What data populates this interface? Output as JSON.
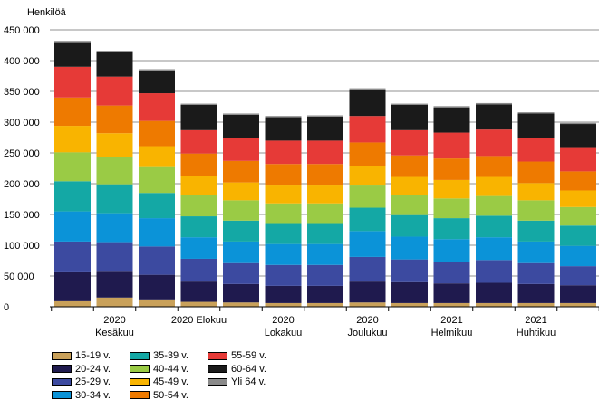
{
  "chart_data": {
    "type": "bar",
    "stacked": true,
    "ylabel": "Henkilöä",
    "ylim": [
      0,
      450000
    ],
    "yticks": [
      "0",
      "50 000",
      "100 000",
      "150 000",
      "200 000",
      "250 000",
      "300 000",
      "350 000",
      "400 000",
      "450 000"
    ],
    "x_tick_labels": [
      {
        "line1": "2020",
        "line2": "Kesäkuu",
        "at": 1
      },
      {
        "line1": "2020 Elokuu",
        "line2": "",
        "at": 3
      },
      {
        "line1": "2020",
        "line2": "Lokakuu",
        "at": 5
      },
      {
        "line1": "2020",
        "line2": "Joulukuu",
        "at": 7
      },
      {
        "line1": "2021",
        "line2": "Helmikuu",
        "at": 9
      },
      {
        "line1": "2021",
        "line2": "Huhtikuu",
        "at": 11
      }
    ],
    "grid": "horizontal",
    "categories": [
      "2020-05",
      "2020-06",
      "2020-07",
      "2020-08",
      "2020-09",
      "2020-10",
      "2020-11",
      "2020-12",
      "2021-01",
      "2021-02",
      "2021-03",
      "2021-04",
      "2021-05"
    ],
    "series": [
      {
        "name": "15-19 v.",
        "color": "#c9a15a",
        "values": [
          9000,
          15000,
          12000,
          8000,
          7000,
          6000,
          6000,
          7000,
          6000,
          6000,
          6000,
          6000,
          6000
        ]
      },
      {
        "name": "20-24 v.",
        "color": "#1f1a4e",
        "values": [
          47000,
          42000,
          40000,
          33000,
          30000,
          28000,
          28000,
          34000,
          34000,
          32000,
          33000,
          31000,
          29000
        ]
      },
      {
        "name": "25-29 v.",
        "color": "#3c4aa0",
        "values": [
          50000,
          48000,
          46000,
          37000,
          34000,
          34000,
          34000,
          40000,
          37000,
          35000,
          37000,
          34000,
          31000
        ]
      },
      {
        "name": "30-34 v.",
        "color": "#0b93d8",
        "values": [
          49000,
          47000,
          46000,
          35000,
          35000,
          34000,
          34000,
          42000,
          37000,
          37000,
          37000,
          35000,
          33000
        ]
      },
      {
        "name": "35-39 v.",
        "color": "#14a8a5",
        "values": [
          49000,
          47000,
          41000,
          34000,
          34000,
          34000,
          34000,
          38000,
          35000,
          34000,
          35000,
          34000,
          33000
        ]
      },
      {
        "name": "40-44 v.",
        "color": "#9acb45",
        "values": [
          47000,
          45000,
          42000,
          34000,
          33000,
          32000,
          32000,
          36000,
          32000,
          32000,
          32000,
          33000,
          30000
        ]
      },
      {
        "name": "45-49 v.",
        "color": "#f9b400",
        "values": [
          43000,
          38000,
          34000,
          31000,
          29000,
          29000,
          29000,
          32000,
          30000,
          30000,
          31000,
          28000,
          27000
        ]
      },
      {
        "name": "50-54 v.",
        "color": "#ee7a00",
        "values": [
          46000,
          45000,
          41000,
          37000,
          35000,
          35000,
          35000,
          38000,
          35000,
          35000,
          34000,
          35000,
          31000
        ]
      },
      {
        "name": "55-59 v.",
        "color": "#e63a37",
        "values": [
          50000,
          47000,
          45000,
          38000,
          37000,
          38000,
          38000,
          43000,
          41000,
          42000,
          43000,
          38000,
          38000
        ]
      },
      {
        "name": "60-64 v.",
        "color": "#1a1a1a",
        "values": [
          40000,
          40000,
          37000,
          41000,
          38000,
          38000,
          39000,
          43000,
          41000,
          41000,
          41000,
          40000,
          39000
        ]
      },
      {
        "name": "Yli 64 v.",
        "color": "#8a8a8a",
        "values": [
          2000,
          2000,
          2000,
          2000,
          2000,
          2000,
          2000,
          2000,
          2000,
          2000,
          2000,
          2000,
          2000
        ]
      }
    ]
  }
}
